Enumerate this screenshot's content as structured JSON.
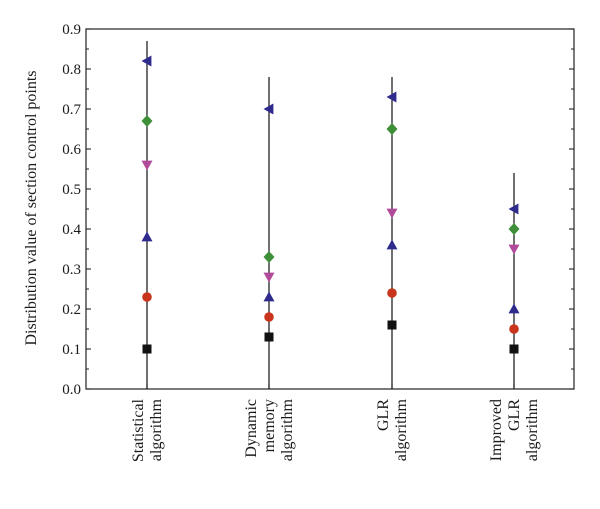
{
  "chart_data": {
    "type": "scatter",
    "ylabel": "Distribution value of section control points",
    "xlabel": "",
    "ylim": [
      0,
      0.9
    ],
    "yticks": [
      "0.0",
      "0.1",
      "0.2",
      "0.3",
      "0.4",
      "0.5",
      "0.6",
      "0.7",
      "0.8",
      "0.9"
    ],
    "grid": false,
    "legend": "none",
    "categories": [
      {
        "lines": [
          "Statistical",
          "algorithm"
        ]
      },
      {
        "lines": [
          "Dynamic",
          "memory",
          "algorithm"
        ]
      },
      {
        "lines": [
          "GLR",
          "algorithm"
        ]
      },
      {
        "lines": [
          "Improved",
          "GLR",
          "algorithm"
        ]
      }
    ],
    "range_lines": [
      {
        "low": 0.0,
        "high": 0.87
      },
      {
        "low": 0.0,
        "high": 0.78
      },
      {
        "low": 0.0,
        "high": 0.78
      },
      {
        "low": 0.0,
        "high": 0.54
      }
    ],
    "series": [
      {
        "marker": "square",
        "color": "#111111",
        "values": [
          0.1,
          0.13,
          0.16,
          0.1
        ]
      },
      {
        "marker": "circle",
        "color": "#c8351c",
        "values": [
          0.23,
          0.18,
          0.24,
          0.15
        ]
      },
      {
        "marker": "triangle-up",
        "color": "#2e2b8c",
        "values": [
          0.38,
          0.23,
          0.36,
          0.2
        ]
      },
      {
        "marker": "triangle-down",
        "color": "#b04a9a",
        "values": [
          0.56,
          0.28,
          0.44,
          0.35
        ]
      },
      {
        "marker": "diamond",
        "color": "#3f8f3a",
        "values": [
          0.67,
          0.33,
          0.65,
          0.4
        ]
      },
      {
        "marker": "triangle-left",
        "color": "#2e2b8c",
        "values": [
          0.82,
          0.7,
          0.73,
          0.45
        ]
      }
    ]
  }
}
